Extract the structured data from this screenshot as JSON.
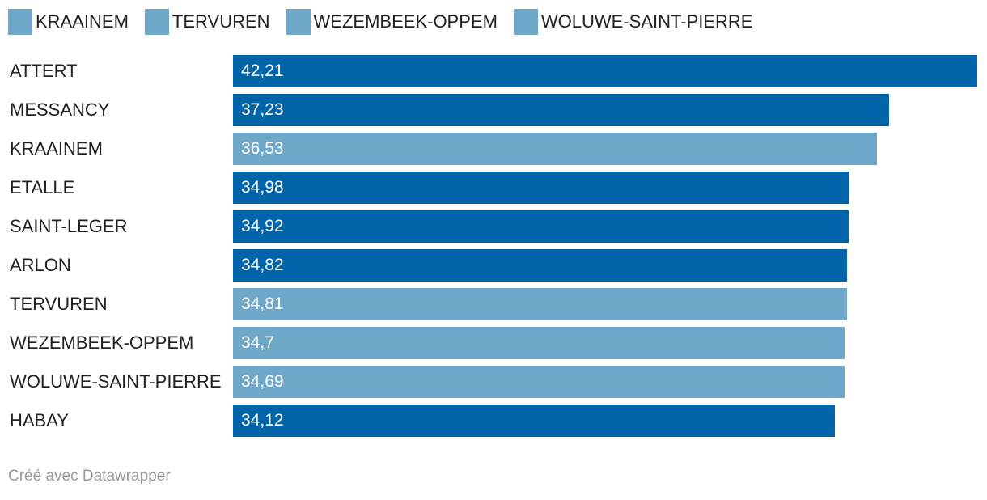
{
  "chart_data": {
    "type": "bar",
    "orientation": "horizontal",
    "categories": [
      "ATTERT",
      "MESSANCY",
      "KRAAINEM",
      "ETALLE",
      "SAINT-LEGER",
      "ARLON",
      "TERVUREN",
      "WEZEMBEEK-OPPEM",
      "WOLUWE-SAINT-PIERRE",
      "HABAY"
    ],
    "values": [
      42.21,
      37.23,
      36.53,
      34.98,
      34.92,
      34.82,
      34.81,
      34.7,
      34.69,
      34.12
    ],
    "value_labels": [
      "42,21",
      "37,23",
      "36,53",
      "34,98",
      "34,92",
      "34,82",
      "34,81",
      "34,7",
      "34,69",
      "34,12"
    ],
    "highlighted": [
      false,
      false,
      true,
      false,
      false,
      false,
      true,
      true,
      true,
      false
    ],
    "xlim": [
      0,
      42.21
    ],
    "title": "",
    "xlabel": "",
    "ylabel": "",
    "grid": false,
    "legend_position": "top-left",
    "legend": [
      "KRAAINEM",
      "TERVUREN",
      "WEZEMBEEK-OPPEM",
      "WOLUWE-SAINT-PIERRE"
    ]
  },
  "colors": {
    "default_bar": "#0164a8",
    "highlight_bar": "#6ea7c8",
    "legend_swatch": "#6ea7c8"
  },
  "footer": {
    "credit": "Créé avec Datawrapper"
  }
}
